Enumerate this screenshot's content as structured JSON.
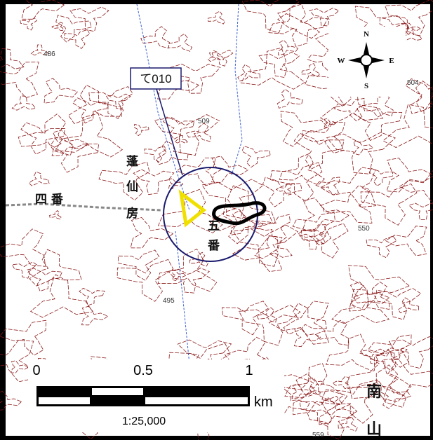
{
  "callout": {
    "label": "て010"
  },
  "compass": {
    "north": "N",
    "south": "S",
    "east": "E",
    "west": "W"
  },
  "map_labels": {
    "elevations": [
      "486",
      "509",
      "504",
      "550",
      "495",
      "559"
    ],
    "places": [
      "四 番",
      "蓬",
      "仙",
      "房",
      "五",
      "番",
      "南",
      "山"
    ]
  },
  "scale_bar": {
    "labels": [
      "0",
      "0.5",
      "1"
    ],
    "unit": "km",
    "ratio": "1:25,000"
  }
}
